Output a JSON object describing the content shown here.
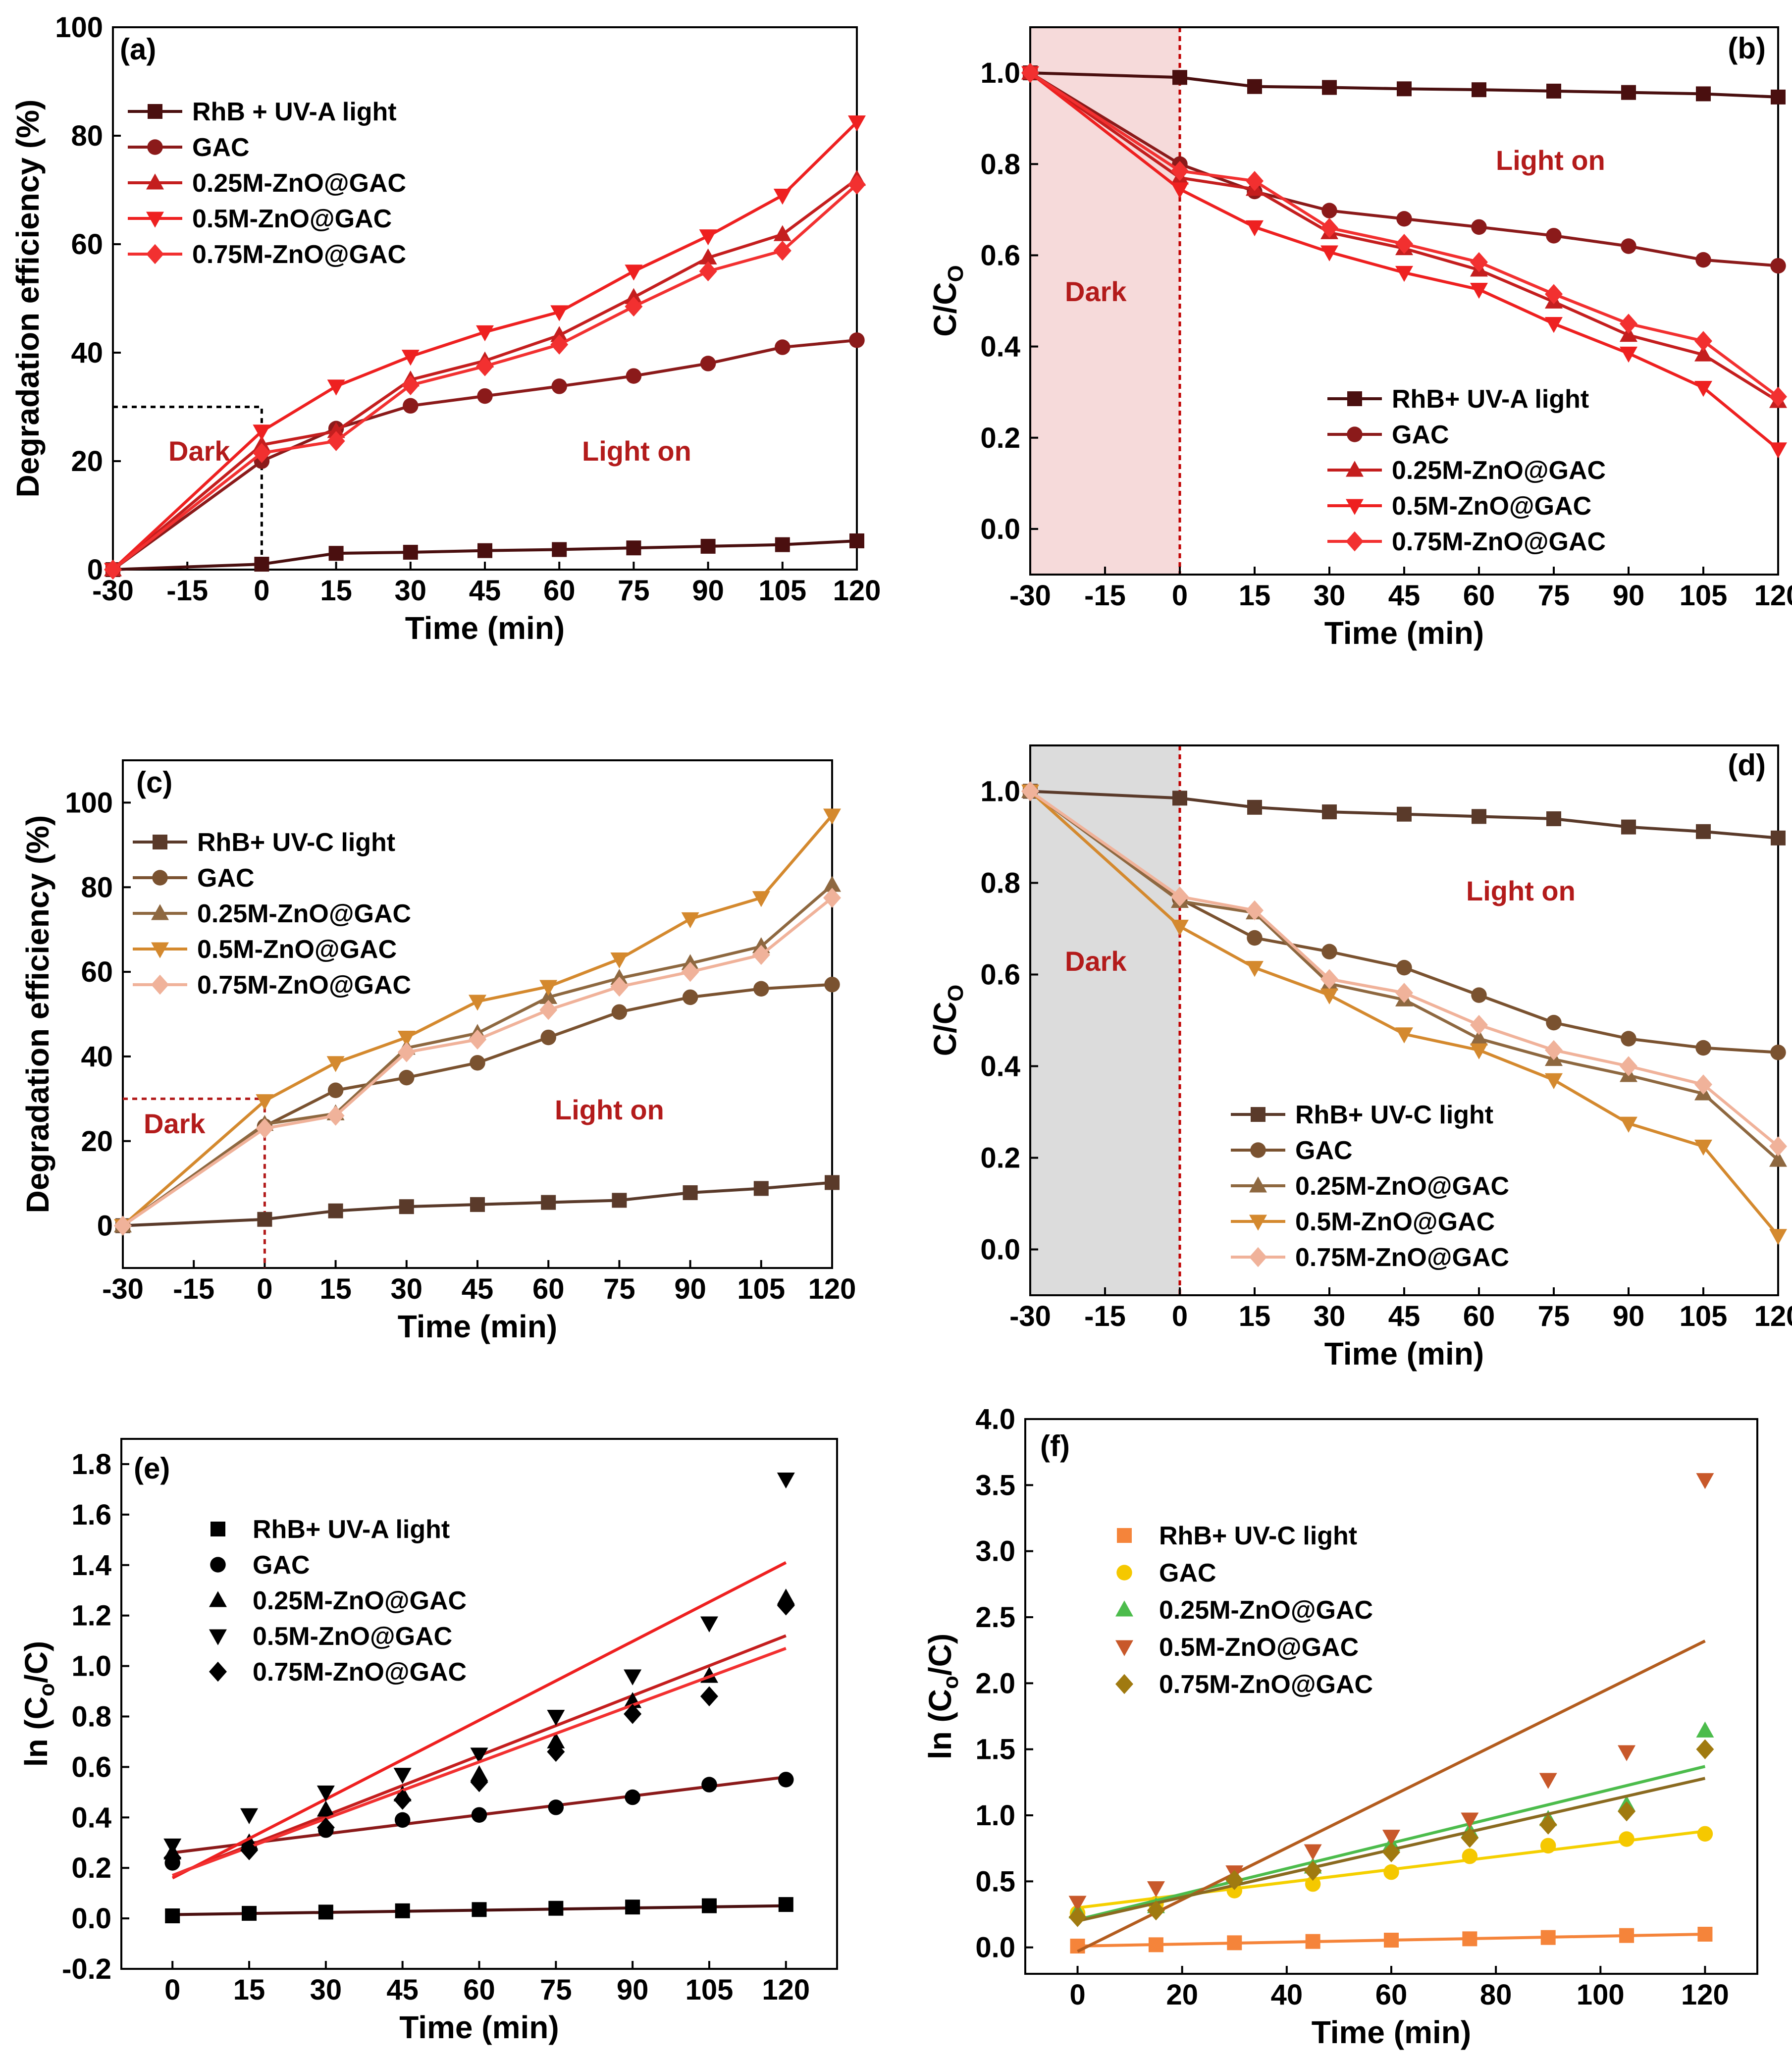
{
  "chart_data": [
    {
      "panel": "(a)",
      "type": "line",
      "xlabel": "Time (min)",
      "ylabel": "Degradation efficiency (%)",
      "xlim": [
        -30,
        120
      ],
      "ylim": [
        0,
        100
      ],
      "xticks": [
        -30,
        -15,
        0,
        15,
        30,
        45,
        60,
        75,
        90,
        105,
        120
      ],
      "yticks": [
        0,
        20,
        40,
        60,
        80,
        100
      ],
      "legend_position": "top-left",
      "annotations": {
        "dark": "Dark",
        "light": "Light  on"
      },
      "x": [
        -30,
        0,
        15,
        30,
        45,
        60,
        75,
        90,
        105,
        120
      ],
      "series": [
        {
          "name": "RhB + UV-A light",
          "marker": "square",
          "color": "#4a0f0f",
          "values": [
            0,
            1,
            3,
            3.2,
            3.5,
            3.7,
            4,
            4.3,
            4.6,
            5.3
          ]
        },
        {
          "name": "GAC",
          "marker": "circle",
          "color": "#8b1a1a",
          "values": [
            0,
            20,
            26,
            30.2,
            32,
            33.8,
            35.7,
            38,
            41,
            42.3
          ]
        },
        {
          "name": "0.25M-ZnO@GAC",
          "marker": "triangle-up",
          "color": "#c41e1e",
          "values": [
            0,
            23,
            25.5,
            35,
            38.5,
            43.2,
            50.2,
            57.5,
            61.8,
            72
          ]
        },
        {
          "name": "0.5M-ZnO@GAC",
          "marker": "triangle-down",
          "color": "#ee2020",
          "values": [
            0,
            25.5,
            33.8,
            39.3,
            43.8,
            47.5,
            55,
            61.5,
            69,
            82.5
          ]
        },
        {
          "name": "0.75M-ZnO@GAC",
          "marker": "diamond",
          "color": "#f23030",
          "values": [
            0,
            21.5,
            23.7,
            34,
            37.5,
            41.5,
            48.5,
            55,
            58.8,
            71
          ]
        }
      ]
    },
    {
      "panel": "(b)",
      "type": "line",
      "xlabel": "Time (min)",
      "ylabel": "C/C",
      "ylabel_sub": "O",
      "xlim": [
        -30,
        120
      ],
      "ylim": [
        -0.1,
        1.1
      ],
      "xticks": [
        -30,
        -15,
        0,
        15,
        30,
        45,
        60,
        75,
        90,
        105,
        120
      ],
      "yticks": [
        "0.0",
        "0.2",
        "0.4",
        "0.6",
        "0.8",
        "1.0"
      ],
      "legend_position": "bottom-right",
      "shaded_color": "#f6dada",
      "annotations": {
        "dark": "Dark",
        "light": "Light on"
      },
      "x": [
        -30,
        0,
        15,
        30,
        45,
        60,
        75,
        90,
        105,
        120
      ],
      "series": [
        {
          "name": "RhB+ UV-A light",
          "marker": "square",
          "color": "#4a0f0f",
          "values": [
            1.0,
            0.99,
            0.97,
            0.968,
            0.965,
            0.963,
            0.96,
            0.957,
            0.954,
            0.947
          ]
        },
        {
          "name": "GAC",
          "marker": "circle",
          "color": "#8b1a1a",
          "values": [
            1.0,
            0.8,
            0.74,
            0.698,
            0.68,
            0.662,
            0.643,
            0.62,
            0.59,
            0.577
          ]
        },
        {
          "name": "0.25M-ZnO@GAC",
          "marker": "triangle-up",
          "color": "#c41e1e",
          "values": [
            1.0,
            0.77,
            0.745,
            0.65,
            0.615,
            0.568,
            0.498,
            0.425,
            0.382,
            0.28
          ]
        },
        {
          "name": "0.5M-ZnO@GAC",
          "marker": "triangle-down",
          "color": "#ee2020",
          "values": [
            1.0,
            0.745,
            0.662,
            0.607,
            0.562,
            0.525,
            0.45,
            0.385,
            0.31,
            0.175
          ]
        },
        {
          "name": "0.75M-ZnO@GAC",
          "marker": "diamond",
          "color": "#f23030",
          "values": [
            1.0,
            0.785,
            0.763,
            0.66,
            0.625,
            0.585,
            0.515,
            0.45,
            0.412,
            0.29
          ]
        }
      ]
    },
    {
      "panel": "(c)",
      "type": "line",
      "xlabel": "Time (min)",
      "ylabel": "Degradation efficiency (%)",
      "xlim": [
        -30,
        120
      ],
      "ylim": [
        -10,
        110
      ],
      "xticks": [
        -30,
        -15,
        0,
        15,
        30,
        45,
        60,
        75,
        90,
        105,
        120
      ],
      "yticks": [
        0,
        20,
        40,
        60,
        80,
        100
      ],
      "legend_position": "top-left",
      "annotations": {
        "dark": "Dark",
        "light": "Light on"
      },
      "x": [
        -30,
        0,
        15,
        30,
        45,
        60,
        75,
        90,
        105,
        120
      ],
      "series": [
        {
          "name": "RhB+ UV-C light",
          "marker": "square",
          "color": "#5a3a2a",
          "values": [
            0,
            1.5,
            3.5,
            4.5,
            5,
            5.5,
            6,
            7.8,
            8.8,
            10.2
          ]
        },
        {
          "name": "GAC",
          "marker": "circle",
          "color": "#7a5230",
          "values": [
            0,
            23.5,
            32,
            35,
            38.5,
            44.5,
            50.5,
            54,
            56,
            57
          ]
        },
        {
          "name": "0.25M-ZnO@GAC",
          "marker": "triangle-up",
          "color": "#8e6840",
          "values": [
            0,
            24,
            26.5,
            42,
            45.5,
            54,
            58.5,
            62,
            66,
            80.5
          ]
        },
        {
          "name": "0.5M-ZnO@GAC",
          "marker": "triangle-down",
          "color": "#d4892e",
          "values": [
            0,
            29.5,
            38.5,
            44.5,
            53,
            56.5,
            63,
            72.5,
            77.5,
            97
          ]
        },
        {
          "name": "0.75M-ZnO@GAC",
          "marker": "diamond",
          "color": "#f0b29a",
          "values": [
            0,
            23,
            26,
            41,
            44,
            51,
            56.5,
            60,
            64,
            77.5
          ]
        }
      ]
    },
    {
      "panel": "(d)",
      "type": "line",
      "xlabel": "Time (min)",
      "ylabel": "C/C",
      "ylabel_sub": "O",
      "xlim": [
        -30,
        120
      ],
      "ylim": [
        -0.1,
        1.1
      ],
      "xticks": [
        -30,
        -15,
        0,
        15,
        30,
        45,
        60,
        75,
        90,
        105,
        120
      ],
      "yticks": [
        "0.0",
        "0.2",
        "0.4",
        "0.6",
        "0.8",
        "1.0"
      ],
      "legend_position": "bottom-right",
      "shaded_color": "#dcdcdc",
      "annotations": {
        "dark": "Dark",
        "light": "Light on"
      },
      "x": [
        -30,
        0,
        15,
        30,
        45,
        60,
        75,
        90,
        105,
        120
      ],
      "series": [
        {
          "name": "RhB+ UV-C light",
          "marker": "square",
          "color": "#5a3a2a",
          "values": [
            1.0,
            0.985,
            0.965,
            0.955,
            0.95,
            0.945,
            0.94,
            0.922,
            0.912,
            0.898
          ]
        },
        {
          "name": "GAC",
          "marker": "circle",
          "color": "#7a5230",
          "values": [
            1.0,
            0.765,
            0.68,
            0.65,
            0.615,
            0.555,
            0.495,
            0.46,
            0.44,
            0.43
          ]
        },
        {
          "name": "0.25M-ZnO@GAC",
          "marker": "triangle-up",
          "color": "#8e6840",
          "values": [
            1.0,
            0.76,
            0.735,
            0.58,
            0.545,
            0.46,
            0.415,
            0.38,
            0.34,
            0.195
          ]
        },
        {
          "name": "0.5M-ZnO@GAC",
          "marker": "triangle-down",
          "color": "#d4892e",
          "values": [
            1.0,
            0.705,
            0.615,
            0.555,
            0.47,
            0.435,
            0.37,
            0.275,
            0.225,
            0.03
          ]
        },
        {
          "name": "0.75M-ZnO@GAC",
          "marker": "diamond",
          "color": "#f0b29a",
          "values": [
            1.0,
            0.77,
            0.74,
            0.59,
            0.56,
            0.49,
            0.435,
            0.4,
            0.36,
            0.225
          ]
        }
      ]
    },
    {
      "panel": "(e)",
      "type": "scatter",
      "xlabel": "Time (min)",
      "ylabel": "ln (C",
      "ylabel_sub": "o",
      "ylabel_tail": "/C)",
      "xlim": [
        -10,
        130
      ],
      "ylim": [
        -0.2,
        1.9
      ],
      "xticks": [
        0,
        15,
        30,
        45,
        60,
        75,
        90,
        105,
        120
      ],
      "yticks": [
        "-0.2",
        "0.0",
        "0.2",
        "0.4",
        "0.6",
        "0.8",
        "1.0",
        "1.2",
        "1.4",
        "1.6",
        "1.8"
      ],
      "legend_position": "top-left",
      "fit_line_x": [
        0,
        120
      ],
      "x": [
        0,
        15,
        30,
        45,
        60,
        75,
        90,
        105,
        120
      ],
      "series": [
        {
          "name": "RhB+ UV-A light",
          "marker": "square",
          "color": "#000000",
          "fit_color": "#4a0f0f",
          "values": [
            0.01,
            0.02,
            0.025,
            0.03,
            0.035,
            0.04,
            0.045,
            0.05,
            0.055
          ],
          "fit": [
            0.015,
            0.05
          ]
        },
        {
          "name": "GAC",
          "marker": "circle",
          "color": "#000000",
          "fit_color": "#8b1a1a",
          "values": [
            0.22,
            0.28,
            0.35,
            0.39,
            0.41,
            0.44,
            0.48,
            0.53,
            0.55
          ],
          "fit": [
            0.26,
            0.56
          ]
        },
        {
          "name": "0.25M-ZnO@GAC",
          "marker": "triangle-up",
          "color": "#000000",
          "fit_color": "#c41e1e",
          "values": [
            0.26,
            0.3,
            0.43,
            0.49,
            0.57,
            0.7,
            0.86,
            0.96,
            1.27
          ],
          "fit": [
            0.17,
            1.12
          ]
        },
        {
          "name": "0.5M-ZnO@GAC",
          "marker": "triangle-down",
          "color": "#000000",
          "fit_color": "#ee2020",
          "values": [
            0.29,
            0.41,
            0.5,
            0.57,
            0.65,
            0.8,
            0.96,
            1.17,
            1.74
          ],
          "fit": [
            0.16,
            1.41
          ]
        },
        {
          "name": "0.75M-ZnO@GAC",
          "marker": "diamond",
          "color": "#000000",
          "fit_color": "#f23030",
          "values": [
            0.24,
            0.27,
            0.36,
            0.47,
            0.54,
            0.66,
            0.81,
            0.88,
            1.24
          ],
          "fit": [
            0.17,
            1.07
          ]
        }
      ]
    },
    {
      "panel": "(f)",
      "type": "scatter",
      "xlabel": "Time (min)",
      "ylabel": "ln (C",
      "ylabel_sub": "o",
      "ylabel_tail": "/C)",
      "xlim": [
        -10,
        130
      ],
      "ylim": [
        -0.2,
        4.0
      ],
      "xticks": [
        0,
        20,
        40,
        60,
        80,
        100,
        120
      ],
      "yticks": [
        "0.0",
        "0.5",
        "1.0",
        "1.5",
        "2.0",
        "2.5",
        "3.0",
        "3.5",
        "4.0"
      ],
      "legend_position": "top-left",
      "fit_line_x": [
        0,
        120
      ],
      "x": [
        0,
        15,
        30,
        45,
        60,
        75,
        90,
        105,
        120
      ],
      "series": [
        {
          "name": "RhB+ UV-C light",
          "marker": "square",
          "color": "#f5843a",
          "fit_color": "#f5843a",
          "values": [
            0.01,
            0.02,
            0.035,
            0.045,
            0.055,
            0.065,
            0.075,
            0.09,
            0.1
          ],
          "fit": [
            0.01,
            0.1
          ]
        },
        {
          "name": "GAC",
          "marker": "circle",
          "color": "#f5c800",
          "fit_color": "#f5d000",
          "values": [
            0.26,
            0.33,
            0.43,
            0.48,
            0.57,
            0.69,
            0.77,
            0.82,
            0.86
          ],
          "fit": [
            0.3,
            0.88
          ]
        },
        {
          "name": "0.25M-ZnO@GAC",
          "marker": "triangle-up",
          "color": "#4cbc4c",
          "fit_color": "#4cbc4c",
          "values": [
            0.27,
            0.31,
            0.54,
            0.61,
            0.78,
            0.88,
            0.97,
            1.08,
            1.64
          ],
          "fit": [
            0.21,
            1.37
          ]
        },
        {
          "name": "0.5M-ZnO@GAC",
          "marker": "triangle-down",
          "color": "#c8582a",
          "fit_color": "#b35c1e",
          "values": [
            0.34,
            0.45,
            0.57,
            0.73,
            0.84,
            0.97,
            1.27,
            1.48,
            3.54
          ],
          "fit": [
            -0.03,
            2.32
          ]
        },
        {
          "name": "0.75M-ZnO@GAC",
          "marker": "diamond",
          "color": "#a07a10",
          "fit_color": "#8a6a20",
          "values": [
            0.23,
            0.28,
            0.51,
            0.58,
            0.72,
            0.83,
            0.93,
            1.03,
            1.5
          ],
          "fit": [
            0.2,
            1.28
          ]
        }
      ]
    }
  ]
}
